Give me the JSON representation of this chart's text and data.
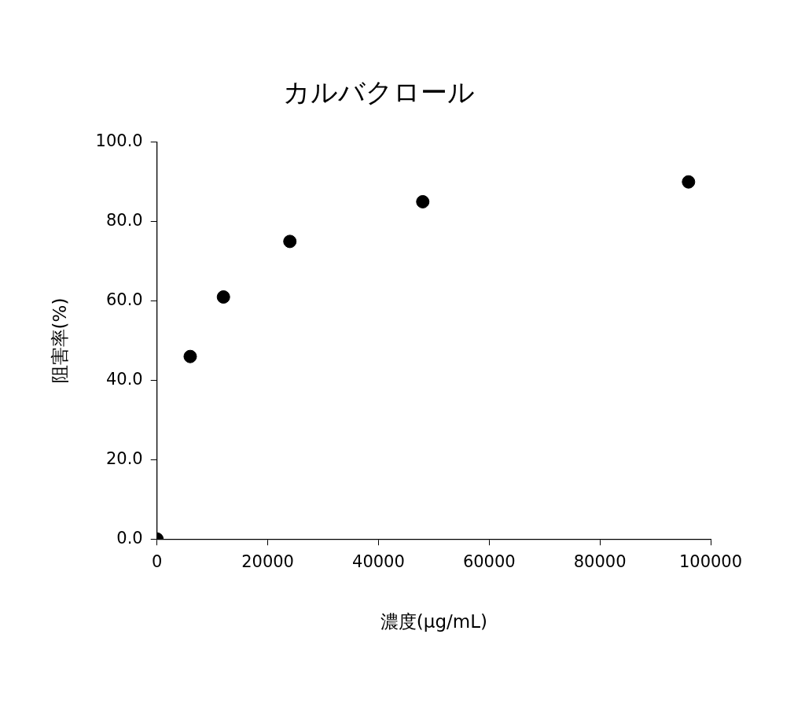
{
  "chart_data": {
    "type": "scatter",
    "title": "カルバクロール",
    "xlabel": "濃度(μg/mL)",
    "ylabel": "阻害率(%)",
    "x": [
      0,
      6000,
      12000,
      24000,
      48000,
      96000
    ],
    "series": [
      {
        "color": "#000000",
        "values": [
          0,
          46,
          61,
          75,
          85,
          90
        ]
      }
    ],
    "xlim": [
      0,
      100000
    ],
    "xticks": [
      0,
      20000,
      40000,
      60000,
      80000,
      100000
    ],
    "ylim": [
      0,
      100
    ],
    "yticks": [
      {
        "value": 0,
        "label": "0.0"
      },
      {
        "value": 20,
        "label": "20.0"
      },
      {
        "value": 40,
        "label": "40.0"
      },
      {
        "value": 60,
        "label": "60.0"
      },
      {
        "value": 80,
        "label": "80.0"
      },
      {
        "value": 100,
        "label": "100.0"
      }
    ],
    "grid": false,
    "legend": false,
    "marker": "circle"
  }
}
